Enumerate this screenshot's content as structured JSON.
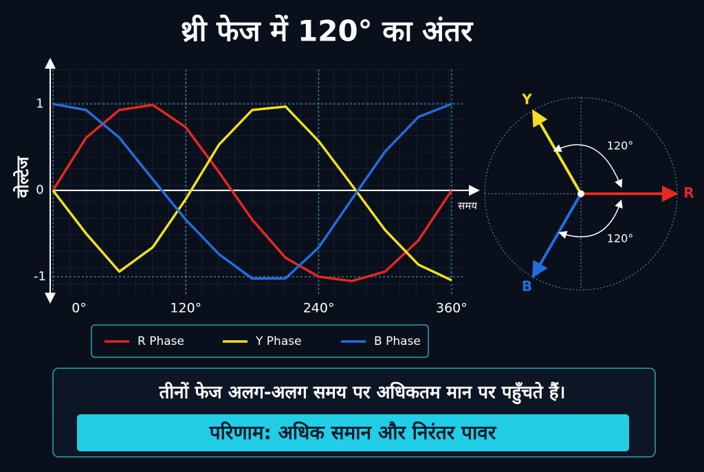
{
  "chart_data": {
    "type": "line",
    "title": "थ्री फेज में 120° का अंतर",
    "x_label": "समय",
    "y_label": "वोल्टेज",
    "x": [
      0,
      30,
      60,
      90,
      120,
      150,
      180,
      210,
      240,
      270,
      300,
      330,
      360
    ],
    "series": [
      {
        "name": "R Phase",
        "color": "#e8271f",
        "values": [
          0,
          0.61,
          0.93,
          0.99,
          0.73,
          0.21,
          -0.34,
          -0.78,
          -1.0,
          -1.05,
          -0.94,
          -0.58,
          0
        ]
      },
      {
        "name": "Y Phase",
        "color": "#f2e01c",
        "values": [
          0,
          -0.5,
          -0.94,
          -0.66,
          -0.1,
          0.53,
          0.93,
          0.97,
          0.57,
          0.06,
          -0.46,
          -0.86,
          -1.04
        ]
      },
      {
        "name": "B Phase",
        "color": "#1f6fe0",
        "values": [
          1,
          0.93,
          0.61,
          0.13,
          -0.34,
          -0.74,
          -1.02,
          -1.02,
          -0.66,
          -0.1,
          0.45,
          0.85,
          1
        ]
      }
    ],
    "xlim": [
      0,
      370
    ],
    "ylim": [
      -1.2,
      1.4
    ],
    "xticks": [
      {
        "value": 0,
        "label": "0°"
      },
      {
        "value": 120,
        "label": "120°"
      },
      {
        "value": 240,
        "label": "240°"
      },
      {
        "value": 360,
        "label": "360°"
      }
    ],
    "yticks": [
      -1,
      0,
      1
    ],
    "grid": true
  },
  "phasor": {
    "vectors": [
      {
        "name": "R",
        "angle": 0,
        "color": "#e8271f"
      },
      {
        "name": "Y",
        "angle": 120,
        "color": "#f2e01c"
      },
      {
        "name": "B",
        "angle": 240,
        "color": "#1f6fe0"
      }
    ],
    "angle_labels": [
      "120°",
      "120°"
    ]
  },
  "note": {
    "text": "तीनों फेज अलग-अलग समय पर अधिकतम मान पर पहुँचते हैं।",
    "result": "परिणाम: अधिक समान और निरंतर पावर"
  }
}
